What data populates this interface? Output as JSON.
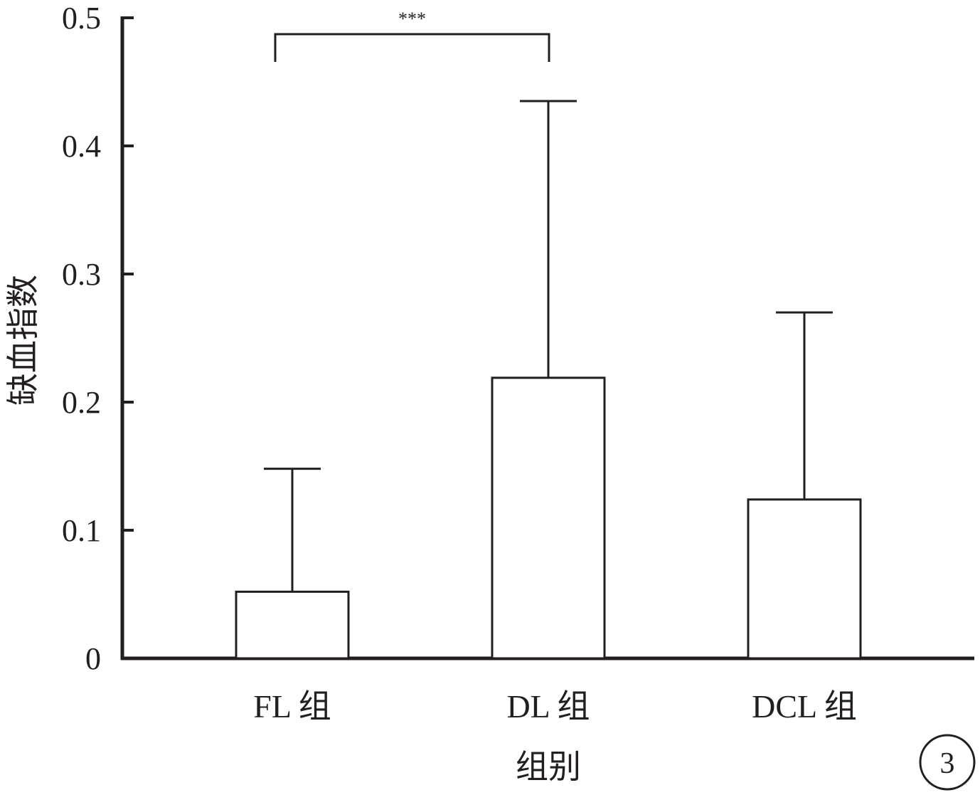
{
  "chart_data": {
    "type": "bar",
    "categories": [
      "FL 组",
      "DL 组",
      "DCL 组"
    ],
    "values": [
      0.052,
      0.219,
      0.124
    ],
    "error_upper": [
      0.148,
      0.435,
      0.27
    ],
    "title": "",
    "xlabel": "组别",
    "ylabel": "缺血指数",
    "ylim": [
      0,
      0.5
    ],
    "yticks": [
      "0",
      "0.1",
      "0.2",
      "0.3",
      "0.4",
      "0.5"
    ],
    "ytick_values": [
      0,
      0.1,
      0.2,
      0.3,
      0.4,
      0.5
    ],
    "grid": false,
    "legend": "none",
    "significance": [
      {
        "from": "FL 组",
        "to": "DL 组",
        "label": "***"
      }
    ],
    "panel_label": "3",
    "colors": {
      "ink": "#231f20",
      "bar_fill": "#ffffff"
    }
  }
}
